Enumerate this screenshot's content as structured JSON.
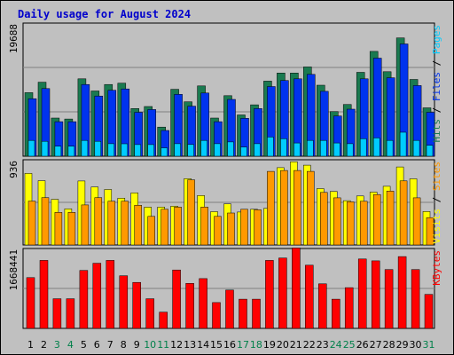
{
  "chart_data": [
    {
      "type": "bar",
      "title": "Daily usage for August 2024",
      "panel": "Pages / Files / Hits",
      "categories": [
        "1",
        "2",
        "3",
        "4",
        "5",
        "6",
        "7",
        "8",
        "9",
        "10",
        "11",
        "12",
        "13",
        "14",
        "15",
        "16",
        "17",
        "18",
        "19",
        "20",
        "21",
        "22",
        "23",
        "24",
        "25",
        "26",
        "27",
        "28",
        "29",
        "30",
        "31"
      ],
      "weekend_days": [
        "3",
        "4",
        "10",
        "11",
        "17",
        "18",
        "24",
        "25",
        "31"
      ],
      "ylim": [
        0,
        19688
      ],
      "y_tick_label": "19688",
      "grid": true,
      "series": [
        {
          "name": "Hits",
          "color": "#1a7a50",
          "values": [
            9400,
            10950,
            5650,
            5500,
            11450,
            9650,
            10600,
            10800,
            7050,
            7350,
            4300,
            9900,
            8050,
            10400,
            5650,
            8950,
            6100,
            7600,
            11100,
            12300,
            12300,
            13200,
            10500,
            6600,
            7650,
            12400,
            15500,
            12500,
            17500,
            11350,
            7150
          ]
        },
        {
          "name": "Files",
          "color": "#0033ee",
          "values": [
            8500,
            10000,
            5100,
            5100,
            10600,
            8900,
            9750,
            9950,
            6500,
            6900,
            3800,
            9150,
            7400,
            9350,
            5100,
            8400,
            5600,
            7050,
            10300,
            11200,
            11450,
            12100,
            9600,
            5950,
            6950,
            11450,
            14500,
            11600,
            16600,
            10450,
            6500
          ]
        },
        {
          "name": "Pages",
          "color": "#00ccff",
          "values": [
            2330,
            2210,
            1480,
            1480,
            2330,
            2210,
            1850,
            1840,
            1720,
            1720,
            1230,
            1850,
            1730,
            2340,
            1850,
            2110,
            1350,
            1850,
            2830,
            2580,
            1960,
            2330,
            2340,
            1960,
            1850,
            2580,
            2700,
            2330,
            3550,
            2330,
            1620
          ]
        }
      ]
    },
    {
      "type": "bar",
      "panel": "Sites / Visits",
      "categories": [
        "1",
        "2",
        "3",
        "4",
        "5",
        "6",
        "7",
        "8",
        "9",
        "10",
        "11",
        "12",
        "13",
        "14",
        "15",
        "16",
        "17",
        "18",
        "19",
        "20",
        "21",
        "22",
        "23",
        "24",
        "25",
        "26",
        "27",
        "28",
        "29",
        "30",
        "31"
      ],
      "ylim": [
        0,
        936
      ],
      "y_tick_label": "936",
      "grid": true,
      "series": [
        {
          "name": "Visits",
          "color": "#ffff00",
          "values": [
            786,
            706,
            501,
            397,
            703,
            637,
            609,
            514,
            572,
            415,
            416,
            426,
            728,
            543,
            366,
            451,
            362,
            392,
            402,
            849,
            914,
            877,
            619,
            588,
            487,
            538,
            580,
            644,
            857,
            726,
            368
          ]
        },
        {
          "name": "Sites",
          "color": "#ff9900",
          "values": [
            482,
            520,
            358,
            358,
            440,
            520,
            481,
            481,
            436,
            314,
            392,
            416,
            716,
            416,
            314,
            351,
            392,
            386,
            808,
            818,
            818,
            808,
            577,
            518,
            474,
            480,
            554,
            592,
            704,
            518,
            300
          ]
        }
      ]
    },
    {
      "type": "bar",
      "panel": "KBytes",
      "categories": [
        "1",
        "2",
        "3",
        "4",
        "5",
        "6",
        "7",
        "8",
        "9",
        "10",
        "11",
        "12",
        "13",
        "14",
        "15",
        "16",
        "17",
        "18",
        "19",
        "20",
        "21",
        "22",
        "23",
        "24",
        "25",
        "26",
        "27",
        "28",
        "29",
        "30",
        "31"
      ],
      "ylim": [
        0,
        1668441
      ],
      "y_tick_label": "1668441",
      "grid": true,
      "series": [
        {
          "name": "KBytes",
          "color": "#ff0000",
          "values": [
            1060000,
            1420000,
            620000,
            620000,
            1210000,
            1360000,
            1420000,
            1100000,
            960000,
            620000,
            340000,
            1220000,
            940000,
            1040000,
            540000,
            800000,
            610000,
            610000,
            1420000,
            1470000,
            1680000,
            1320000,
            930000,
            610000,
            850000,
            1450000,
            1410000,
            1230000,
            1500000,
            1230000,
            710000
          ]
        }
      ]
    }
  ],
  "colors": {
    "background": "#c0c0c0",
    "title_text": "#0000cc",
    "weekday_label": "#000000",
    "weekend_label": "#00804a"
  }
}
